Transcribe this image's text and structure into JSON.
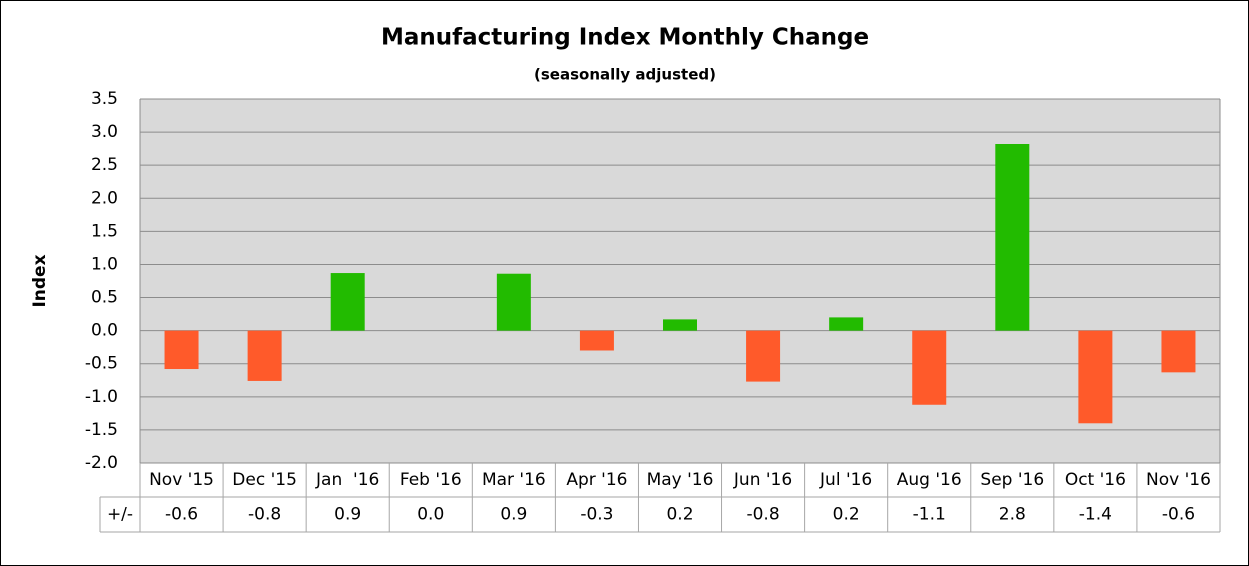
{
  "chart_data": {
    "type": "bar",
    "title": "Manufacturing Index Monthly Change",
    "subtitle": "(seasonally adjusted)",
    "y_label": "Index",
    "table_row_label": "+/-",
    "categories": [
      "Nov '15",
      "Dec '15",
      "Jan  '16",
      "Feb '16",
      "Mar '16",
      "Apr '16",
      "May '16",
      "Jun '16",
      "Jul '16",
      "Aug '16",
      "Sep '16",
      "Oct '16",
      "Nov '16"
    ],
    "values": [
      -0.58,
      -0.76,
      0.87,
      0.0,
      0.86,
      -0.3,
      0.17,
      -0.77,
      0.2,
      -1.12,
      2.82,
      -1.4,
      -0.63
    ],
    "value_labels": [
      "-0.6",
      "-0.8",
      "0.9",
      "0.0",
      "0.9",
      "-0.3",
      "0.2",
      "-0.8",
      "0.2",
      "-1.1",
      "2.8",
      "-1.4",
      "-0.6"
    ],
    "positive_color": "#22bb00",
    "negative_color": "#ff5a2a",
    "ylim": [
      -2.0,
      3.5
    ],
    "yticks": [
      {
        "value": -2.0,
        "label": "-2.0"
      },
      -1.5,
      {
        "value": -1.0,
        "label": "-1.0"
      },
      -0.5,
      {
        "value": 0.0,
        "label": "0.0"
      },
      0.5,
      {
        "value": 1.0,
        "label": "1.0"
      },
      1.5,
      {
        "value": 2.0,
        "label": "2.0"
      },
      2.5,
      {
        "value": 3.0,
        "label": "3.0"
      },
      3.5
    ],
    "grid": true
  }
}
